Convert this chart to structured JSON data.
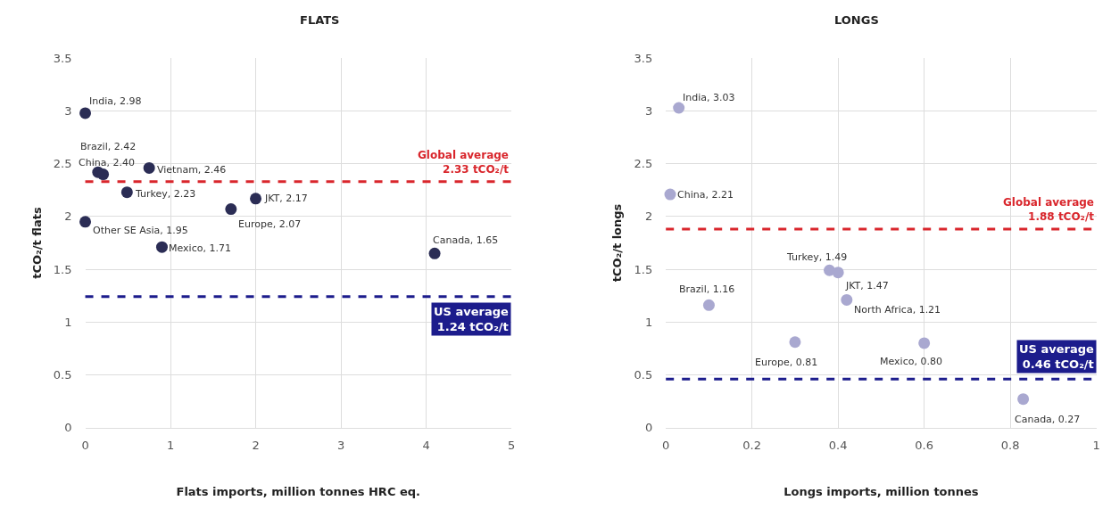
{
  "chart_data": [
    {
      "type": "scatter",
      "title": "FLATS",
      "xlabel": "Flats imports, million tonnes HRC eq.",
      "ylabel": "tCO₂/t flats",
      "marker": "circle",
      "grid": true,
      "xlim": [
        0,
        5
      ],
      "xticks": [
        0,
        1,
        2,
        3,
        4,
        5
      ],
      "ylim": [
        0,
        3.5
      ],
      "yticks": [
        0,
        0.5,
        1,
        1.5,
        2,
        2.5,
        3,
        3.5
      ],
      "series": [
        {
          "color": "#2b2d55",
          "x": [
            0,
            0.15,
            0.21,
            0.75,
            0.49,
            0,
            0.9,
            1.71,
            2.0,
            4.1
          ],
          "values": [
            2.98,
            2.42,
            2.4,
            2.46,
            2.23,
            1.95,
            1.71,
            2.07,
            2.17,
            1.65
          ]
        }
      ],
      "annotations": [
        {
          "text": "India, 2.98",
          "x": 0,
          "y": 2.98
        },
        {
          "text": "Brazil, 2.42",
          "x": 0.15,
          "y": 2.42
        },
        {
          "text": "China, 2.40",
          "x": 0.21,
          "y": 2.4
        },
        {
          "text": "Vietnam, 2.46",
          "x": 0.75,
          "y": 2.46
        },
        {
          "text": "Turkey, 2.23",
          "x": 0.49,
          "y": 2.23
        },
        {
          "text": "Other SE Asia, 1.95",
          "x": 0,
          "y": 1.95
        },
        {
          "text": "Mexico, 1.71",
          "x": 0.9,
          "y": 1.71
        },
        {
          "text": "Europe, 2.07",
          "x": 1.71,
          "y": 2.07
        },
        {
          "text": "JKT, 2.17",
          "x": 2.0,
          "y": 2.17
        },
        {
          "text": "Canada, 1.65",
          "x": 4.1,
          "y": 1.65
        }
      ],
      "ref_lines": [
        {
          "axis": "y",
          "value": 2.33,
          "label": "Global average\n2.33 tCO₂/t",
          "color": "#d9262c",
          "line_style": "dashed"
        },
        {
          "axis": "y",
          "value": 1.24,
          "label": "US average\n1.24 tCO₂/t",
          "color": "#1c1c8c",
          "line_style": "dashed"
        }
      ]
    },
    {
      "type": "scatter",
      "title": "LONGS",
      "xlabel": "Longs imports, million tonnes",
      "ylabel": "tCO₂/t longs",
      "marker": "circle",
      "grid": true,
      "xlim": [
        0,
        1
      ],
      "xticks": [
        0,
        0.2,
        0.4,
        0.6,
        0.8,
        1
      ],
      "ylim": [
        0,
        3.5
      ],
      "yticks": [
        0,
        0.5,
        1,
        1.5,
        2,
        2.5,
        3,
        3.5
      ],
      "series": [
        {
          "color": "#a9a8d0",
          "x": [
            0.03,
            0.01,
            0.38,
            0.4,
            0.42,
            0.1,
            0.3,
            0.6,
            0.83
          ],
          "values": [
            3.03,
            2.21,
            1.49,
            1.47,
            1.21,
            1.16,
            0.81,
            0.8,
            0.27
          ]
        }
      ],
      "annotations": [
        {
          "text": "India, 3.03",
          "x": 0.03,
          "y": 3.03
        },
        {
          "text": "China, 2.21",
          "x": 0.01,
          "y": 2.21
        },
        {
          "text": "Turkey, 1.49",
          "x": 0.38,
          "y": 1.49
        },
        {
          "text": "JKT, 1.47",
          "x": 0.4,
          "y": 1.47
        },
        {
          "text": "North Africa, 1.21",
          "x": 0.42,
          "y": 1.21
        },
        {
          "text": "Brazil, 1.16",
          "x": 0.1,
          "y": 1.16
        },
        {
          "text": "Europe, 0.81",
          "x": 0.3,
          "y": 0.81
        },
        {
          "text": "Mexico, 0.80",
          "x": 0.6,
          "y": 0.8
        },
        {
          "text": "Canada, 0.27",
          "x": 0.83,
          "y": 0.27
        }
      ],
      "ref_lines": [
        {
          "axis": "y",
          "value": 1.88,
          "label": "Global average\n1.88 tCO₂/t",
          "color": "#d9262c",
          "line_style": "dashed"
        },
        {
          "axis": "y",
          "value": 0.46,
          "label": "US average\n0.46 tCO₂/t",
          "color": "#1c1c8c",
          "line_style": "dashed"
        }
      ]
    }
  ]
}
